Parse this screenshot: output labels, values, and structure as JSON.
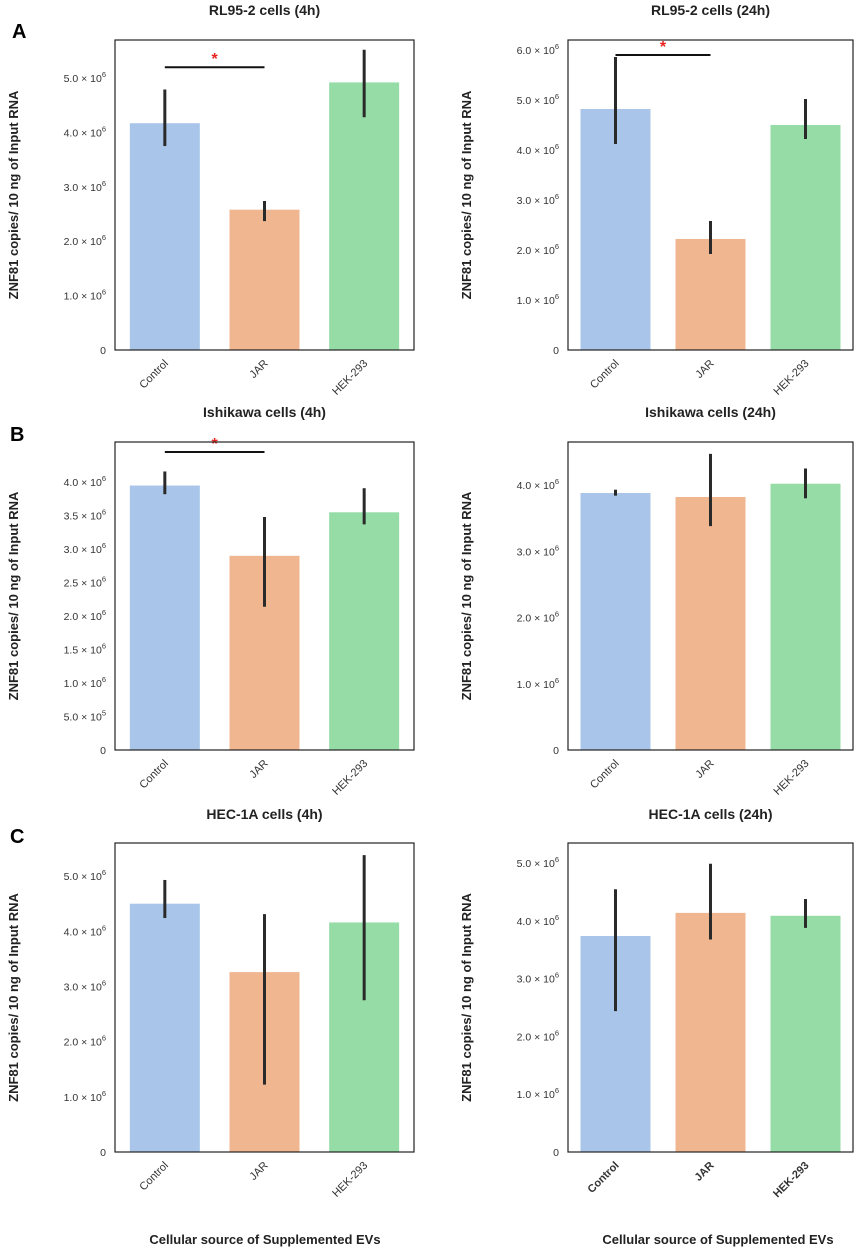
{
  "colors": {
    "Control": "#a9c6ea",
    "JAR": "#efb68f",
    "HEK-293": "#96dca6"
  },
  "panel_labels": [
    "A",
    "B",
    "C"
  ],
  "x_axis_label": "Cellular source of Supplemented EVs",
  "chart_data": [
    {
      "panel": "A",
      "type": "bar",
      "title": "RL95-2 cells (4h)",
      "ylabel": "ZNF81 copies/ 10 ng of Input RNA",
      "xlabel": "",
      "categories": [
        "Control",
        "JAR",
        "HEK-293"
      ],
      "values": [
        4.17,
        2.58,
        4.92
      ],
      "error_low": [
        3.75,
        2.37,
        4.28
      ],
      "error_high": [
        4.79,
        2.74,
        5.52
      ],
      "ylim": [
        0,
        5.7
      ],
      "yticks": [
        0,
        1,
        2,
        3,
        4,
        5
      ],
      "ytick_labels": [
        {
          "m": "0",
          "e": ""
        },
        {
          "m": "1.0 × 10",
          "e": "6"
        },
        {
          "m": "2.0 × 10",
          "e": "6"
        },
        {
          "m": "3.0 × 10",
          "e": "6"
        },
        {
          "m": "4.0 × 10",
          "e": "6"
        },
        {
          "m": "5.0 × 10",
          "e": "6"
        }
      ],
      "significance": [
        {
          "from": 0,
          "to": 1,
          "y": 5.2,
          "label": "*"
        }
      ],
      "bold_categories": false
    },
    {
      "panel": "",
      "type": "bar",
      "title": "RL95-2 cells (24h)",
      "ylabel": "ZNF81 copies/ 10 ng of Input RNA",
      "xlabel": "",
      "categories": [
        "Control",
        "JAR",
        "HEK-293"
      ],
      "values": [
        4.82,
        2.22,
        4.5
      ],
      "error_low": [
        4.12,
        1.92,
        4.22
      ],
      "error_high": [
        5.86,
        2.58,
        5.02
      ],
      "ylim": [
        0,
        6.2
      ],
      "yticks": [
        0,
        1,
        2,
        3,
        4,
        5,
        6
      ],
      "ytick_labels": [
        {
          "m": "0",
          "e": ""
        },
        {
          "m": "1.0 × 10",
          "e": "6"
        },
        {
          "m": "2.0 × 10",
          "e": "6"
        },
        {
          "m": "3.0 × 10",
          "e": "6"
        },
        {
          "m": "4.0 × 10",
          "e": "6"
        },
        {
          "m": "5.0 × 10",
          "e": "6"
        },
        {
          "m": "6.0 × 10",
          "e": "6"
        }
      ],
      "significance": [
        {
          "from": 0,
          "to": 1,
          "y": 5.9,
          "label": "*"
        }
      ],
      "bold_categories": false
    },
    {
      "panel": "B",
      "type": "bar",
      "title": "Ishikawa cells (4h)",
      "ylabel": "ZNF81 copies/ 10 ng of Input RNA",
      "xlabel": "",
      "categories": [
        "Control",
        "JAR",
        "HEK-293"
      ],
      "values": [
        3.95,
        2.9,
        3.55
      ],
      "error_low": [
        3.82,
        2.14,
        3.37
      ],
      "error_high": [
        4.16,
        3.48,
        3.91
      ],
      "ylim": [
        0,
        4.6
      ],
      "yticks": [
        0,
        0.5,
        1,
        1.5,
        2,
        2.5,
        3,
        3.5,
        4
      ],
      "ytick_labels": [
        {
          "m": "0",
          "e": ""
        },
        {
          "m": "5.0 × 10",
          "e": "5"
        },
        {
          "m": "1.0 × 10",
          "e": "6"
        },
        {
          "m": "1.5 × 10",
          "e": "6"
        },
        {
          "m": "2.0 × 10",
          "e": "6"
        },
        {
          "m": "2.5 × 10",
          "e": "6"
        },
        {
          "m": "3.0 × 10",
          "e": "6"
        },
        {
          "m": "3.5 × 10",
          "e": "6"
        },
        {
          "m": "4.0 × 10",
          "e": "6"
        }
      ],
      "significance": [
        {
          "from": 0,
          "to": 1,
          "y": 4.45,
          "label": "*"
        }
      ],
      "bold_categories": false
    },
    {
      "panel": "",
      "type": "bar",
      "title": "Ishikawa cells (24h)",
      "ylabel": "ZNF81 copies/ 10 ng of Input RNA",
      "xlabel": "",
      "categories": [
        "Control",
        "JAR",
        "HEK-293"
      ],
      "values": [
        3.88,
        3.82,
        4.02
      ],
      "error_low": [
        3.84,
        3.38,
        3.8
      ],
      "error_high": [
        3.93,
        4.47,
        4.25
      ],
      "ylim": [
        0,
        4.65
      ],
      "yticks": [
        0,
        1,
        2,
        3,
        4
      ],
      "ytick_labels": [
        {
          "m": "0",
          "e": ""
        },
        {
          "m": "1.0 × 10",
          "e": "6"
        },
        {
          "m": "2.0 × 10",
          "e": "6"
        },
        {
          "m": "3.0 × 10",
          "e": "6"
        },
        {
          "m": "4.0 × 10",
          "e": "6"
        }
      ],
      "significance": [],
      "bold_categories": false
    },
    {
      "panel": "C",
      "type": "bar",
      "title": "HEC-1A cells (4h)",
      "ylabel": "ZNF81 copies/ 10 ng of Input RNA",
      "xlabel": "Cellular source of Supplemented EVs",
      "categories": [
        "Control",
        "JAR",
        "HEK-293"
      ],
      "values": [
        4.5,
        3.26,
        4.16
      ],
      "error_low": [
        4.24,
        1.22,
        2.75
      ],
      "error_high": [
        4.93,
        4.31,
        5.38
      ],
      "ylim": [
        0,
        5.6
      ],
      "yticks": [
        0,
        1,
        2,
        3,
        4,
        5
      ],
      "ytick_labels": [
        {
          "m": "0",
          "e": ""
        },
        {
          "m": "1.0 × 10",
          "e": "6"
        },
        {
          "m": "2.0 × 10",
          "e": "6"
        },
        {
          "m": "3.0 × 10",
          "e": "6"
        },
        {
          "m": "4.0 × 10",
          "e": "6"
        },
        {
          "m": "5.0 × 10",
          "e": "6"
        }
      ],
      "significance": [],
      "bold_categories": false
    },
    {
      "panel": "",
      "type": "bar",
      "title": "HEC-1A cells (24h)",
      "ylabel": "ZNF81 copies/ 10 ng of Input RNA",
      "xlabel": "Cellular source of Supplemented EVs",
      "categories": [
        "Control",
        "JAR",
        "HEK-293"
      ],
      "values": [
        3.74,
        4.14,
        4.09
      ],
      "error_low": [
        2.44,
        3.68,
        3.88
      ],
      "error_high": [
        4.55,
        4.99,
        4.38
      ],
      "ylim": [
        0,
        5.35
      ],
      "yticks": [
        0,
        1,
        2,
        3,
        4,
        5
      ],
      "ytick_labels": [
        {
          "m": "0",
          "e": ""
        },
        {
          "m": "1.0 × 10",
          "e": "6"
        },
        {
          "m": "2.0 × 10",
          "e": "6"
        },
        {
          "m": "3.0 × 10",
          "e": "6"
        },
        {
          "m": "4.0 × 10",
          "e": "6"
        },
        {
          "m": "5.0 × 10",
          "e": "6"
        }
      ],
      "significance": [],
      "bold_categories": true
    }
  ]
}
